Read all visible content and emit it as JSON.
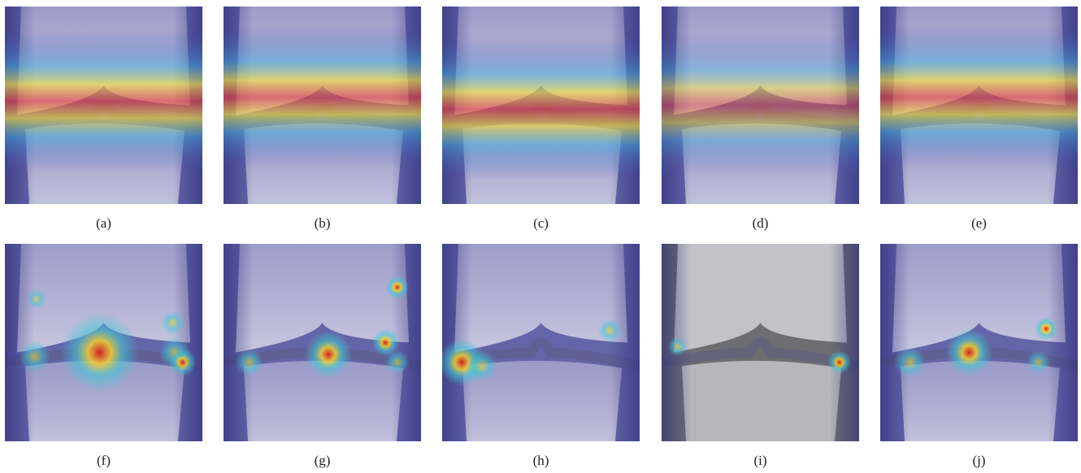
{
  "figure": {
    "panels": [
      {
        "caption": "(a)"
      },
      {
        "caption": "(b)"
      },
      {
        "caption": "(c)"
      },
      {
        "caption": "(d)"
      },
      {
        "caption": "(e)"
      },
      {
        "caption": "(f)"
      },
      {
        "caption": "(g)"
      },
      {
        "caption": "(h)"
      },
      {
        "caption": "(i)"
      },
      {
        "caption": "(j)"
      }
    ]
  }
}
